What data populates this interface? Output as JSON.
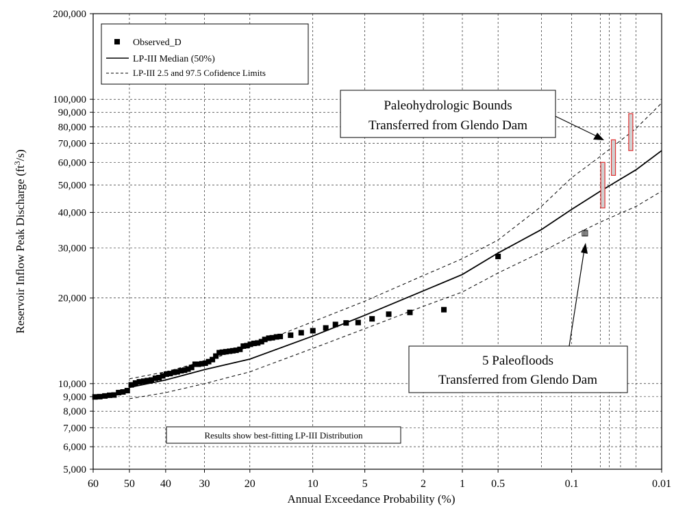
{
  "chart_data": {
    "type": "scatter",
    "xlabel": "Annual Exceedance Probability (%)",
    "ylabel": "Reservoir Inflow Peak Discharge (ft³/s)",
    "ylabel_main": "Reservoir Inflow Peak Discharge (ft",
    "ylabel_sup": "3",
    "ylabel_end": "/s)",
    "x_scale": "normal-probability",
    "y_scale": "log",
    "xlim": [
      60,
      0.01
    ],
    "ylim": [
      5000,
      200000
    ],
    "grid": true,
    "legend_placement": "top-left",
    "x_ticks": [
      {
        "value": 60,
        "label": "60"
      },
      {
        "value": 50,
        "label": "50"
      },
      {
        "value": 40,
        "label": "40"
      },
      {
        "value": 30,
        "label": "30"
      },
      {
        "value": 20,
        "label": "20"
      },
      {
        "value": 10,
        "label": "10"
      },
      {
        "value": 5,
        "label": "5"
      },
      {
        "value": 2,
        "label": "2"
      },
      {
        "value": 1,
        "label": "1"
      },
      {
        "value": 0.5,
        "label": "0.5"
      },
      {
        "value": 0.1,
        "label": "0.1"
      },
      {
        "value": 0.01,
        "label": "0.01"
      }
    ],
    "x_minor_gridlines": [
      0.2,
      0.05,
      0.04,
      0.03,
      0.02
    ],
    "y_ticks": [
      {
        "value": 5000,
        "label": "5,000"
      },
      {
        "value": 6000,
        "label": "6,000"
      },
      {
        "value": 7000,
        "label": "7,000"
      },
      {
        "value": 8000,
        "label": "8,000"
      },
      {
        "value": 9000,
        "label": "9,000"
      },
      {
        "value": 10000,
        "label": "10,000"
      },
      {
        "value": 20000,
        "label": "20,000"
      },
      {
        "value": 30000,
        "label": "30,000"
      },
      {
        "value": 40000,
        "label": "40,000"
      },
      {
        "value": 50000,
        "label": "50,000"
      },
      {
        "value": 60000,
        "label": "60,000"
      },
      {
        "value": 70000,
        "label": "70,000"
      },
      {
        "value": 80000,
        "label": "80,000"
      },
      {
        "value": 90000,
        "label": "90,000"
      },
      {
        "value": 100000,
        "label": "100,000"
      },
      {
        "value": 200000,
        "label": "200,000"
      }
    ],
    "legend": [
      {
        "label": "Observed_D",
        "style": "marker"
      },
      {
        "label": "LP-III Median (50%)",
        "style": "solid"
      },
      {
        "label": "LP-III 2.5 and 97.5 Cofidence Limits",
        "style": "dashed"
      }
    ],
    "series": [
      {
        "name": "Observed_D",
        "style": "marker",
        "points": [
          [
            59.5,
            8980
          ],
          [
            58.2,
            9000
          ],
          [
            56.8,
            9050
          ],
          [
            55.5,
            9100
          ],
          [
            54.3,
            9120
          ],
          [
            53.0,
            9300
          ],
          [
            51.8,
            9350
          ],
          [
            50.6,
            9450
          ],
          [
            49.5,
            9900
          ],
          [
            48.3,
            10050
          ],
          [
            47.2,
            10150
          ],
          [
            46.0,
            10200
          ],
          [
            45.0,
            10250
          ],
          [
            43.9,
            10300
          ],
          [
            42.8,
            10450
          ],
          [
            41.8,
            10500
          ],
          [
            40.8,
            10650
          ],
          [
            39.8,
            10800
          ],
          [
            38.8,
            10850
          ],
          [
            37.8,
            10950
          ],
          [
            36.9,
            11000
          ],
          [
            35.9,
            11100
          ],
          [
            35.0,
            11150
          ],
          [
            34.1,
            11250
          ],
          [
            33.2,
            11400
          ],
          [
            32.3,
            11700
          ],
          [
            31.5,
            11700
          ],
          [
            30.6,
            11750
          ],
          [
            29.8,
            11800
          ],
          [
            29.0,
            11950
          ],
          [
            28.1,
            12150
          ],
          [
            27.3,
            12500
          ],
          [
            26.5,
            12850
          ],
          [
            25.8,
            12900
          ],
          [
            25.0,
            12950
          ],
          [
            24.2,
            13000
          ],
          [
            23.5,
            13050
          ],
          [
            22.8,
            13100
          ],
          [
            22.0,
            13200
          ],
          [
            21.3,
            13550
          ],
          [
            20.6,
            13600
          ],
          [
            19.9,
            13750
          ],
          [
            19.2,
            13850
          ],
          [
            18.5,
            13900
          ],
          [
            17.8,
            14050
          ],
          [
            17.2,
            14300
          ],
          [
            16.5,
            14450
          ],
          [
            15.9,
            14500
          ],
          [
            15.2,
            14600
          ],
          [
            14.6,
            14650
          ],
          [
            13.0,
            14800
          ],
          [
            11.5,
            15100
          ],
          [
            10.0,
            15350
          ],
          [
            8.5,
            15700
          ],
          [
            7.5,
            16150
          ],
          [
            6.5,
            16350
          ],
          [
            5.5,
            16400
          ],
          [
            4.5,
            16900
          ],
          [
            3.5,
            17550
          ],
          [
            2.5,
            17800
          ],
          [
            1.4,
            18200
          ],
          [
            0.5,
            28000
          ]
        ]
      },
      {
        "name": "LP-III Median (50%)",
        "style": "solid",
        "points": [
          [
            50,
            9700
          ],
          [
            40,
            10300
          ],
          [
            30,
            11200
          ],
          [
            20,
            12200
          ],
          [
            10,
            14700
          ],
          [
            5,
            17400
          ],
          [
            2,
            21200
          ],
          [
            1,
            24200
          ],
          [
            0.5,
            28800
          ],
          [
            0.2,
            34800
          ],
          [
            0.1,
            41000
          ],
          [
            0.05,
            47500
          ],
          [
            0.02,
            56500
          ],
          [
            0.01,
            66000
          ]
        ]
      },
      {
        "name": "LP-III 2.5 Confidence Limit",
        "style": "dashed",
        "points": [
          [
            50,
            8850
          ],
          [
            40,
            9300
          ],
          [
            30,
            10000
          ],
          [
            20,
            11000
          ],
          [
            10,
            13300
          ],
          [
            5,
            15600
          ],
          [
            2,
            18700
          ],
          [
            1,
            21000
          ],
          [
            0.5,
            24500
          ],
          [
            0.2,
            29000
          ],
          [
            0.1,
            33000
          ],
          [
            0.05,
            37000
          ],
          [
            0.02,
            42000
          ],
          [
            0.01,
            47500
          ]
        ]
      },
      {
        "name": "LP-III 97.5 Confidence Limit",
        "style": "dashed",
        "points": [
          [
            50,
            10400
          ],
          [
            40,
            11000
          ],
          [
            30,
            12000
          ],
          [
            20,
            13500
          ],
          [
            10,
            16500
          ],
          [
            5,
            19500
          ],
          [
            2,
            24000
          ],
          [
            1,
            27500
          ],
          [
            0.5,
            32000
          ],
          [
            0.2,
            42000
          ],
          [
            0.1,
            53000
          ],
          [
            0.05,
            63000
          ],
          [
            0.02,
            79000
          ],
          [
            0.01,
            97000
          ]
        ]
      }
    ],
    "paleohydrologic_bounds": [
      {
        "p": 0.047,
        "low": 41500,
        "high": 60000
      },
      {
        "p": 0.036,
        "low": 54000,
        "high": 72000
      },
      {
        "p": 0.023,
        "low": 66000,
        "high": 89000
      }
    ],
    "paleoflood_marker": {
      "p": 0.073,
      "value": 33800
    },
    "annotations": [
      {
        "id": "bounds",
        "lines": [
          "Paleohydrologic Bounds",
          "Transferred from Glendo Dam"
        ]
      },
      {
        "id": "paleofloods",
        "lines": [
          "5 Paleofloods",
          "Transferred from Glendo Dam"
        ]
      },
      {
        "id": "results",
        "lines": [
          "Results show best-fitting LP-III Distribution"
        ]
      }
    ],
    "colors": {
      "bounds_fill": "#d0d0d0",
      "bounds_stroke": "#e03030",
      "ink": "#000000"
    }
  }
}
